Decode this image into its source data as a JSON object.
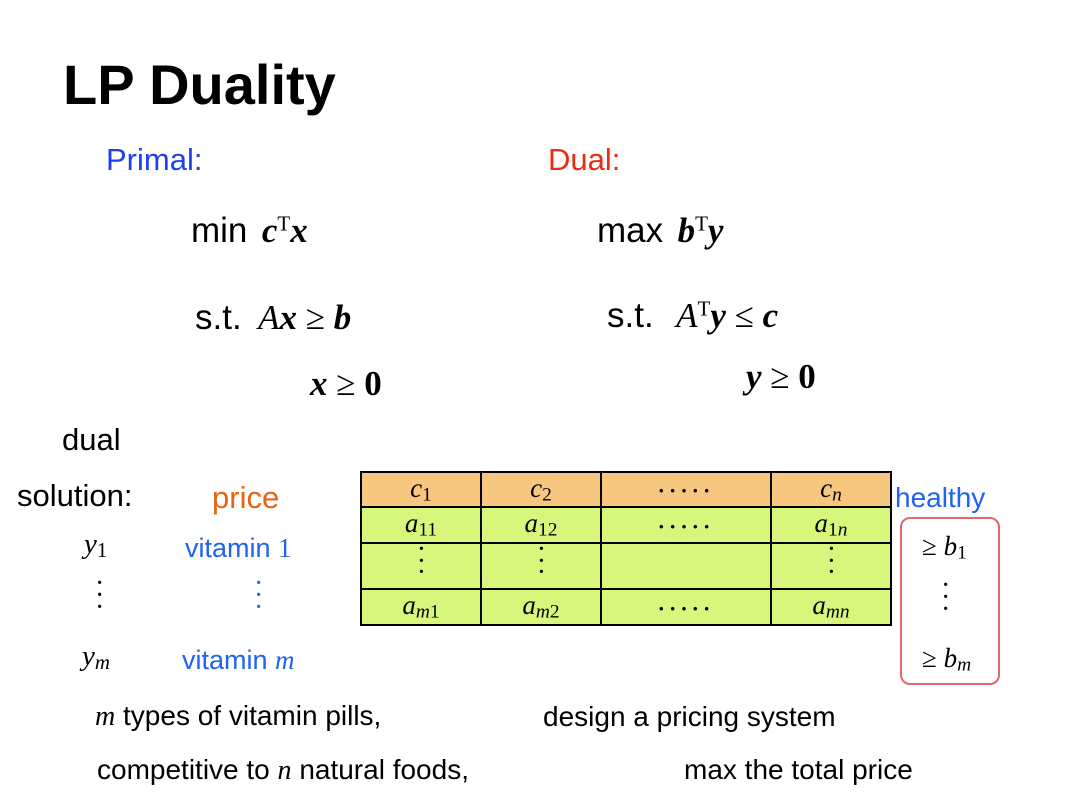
{
  "slide": {
    "title": "LP Duality",
    "primal_label": "Primal:",
    "dual_label": "Dual:",
    "primal": {
      "min": "min",
      "st": "s.t."
    },
    "dual": {
      "max": "max",
      "st": "s.t."
    },
    "dual_solution_line1": "dual",
    "dual_solution_line2": "solution:",
    "price_label": "price",
    "healthy_label": "healthy",
    "vitamin_1": "vitamin",
    "vitamin_1_idx": "1",
    "vitamin_m": "vitamin",
    "vitamin_m_idx": "m",
    "bottom_line1_left": "types of vitamin pills,",
    "bottom_line1_right": "design a pricing system",
    "bottom_line2_left_a": "competitive to",
    "bottom_line2_left_b": "natural foods,",
    "bottom_line2_right": "max the total price",
    "colors": {
      "primal": "#1f3ff0",
      "dual": "#ee2a14",
      "blue_text": "#1f63f0",
      "price": "#e9640f",
      "header_row": "#f7c780",
      "body_rows": "#d6f77b",
      "healthy_box": "#e2696a"
    }
  }
}
